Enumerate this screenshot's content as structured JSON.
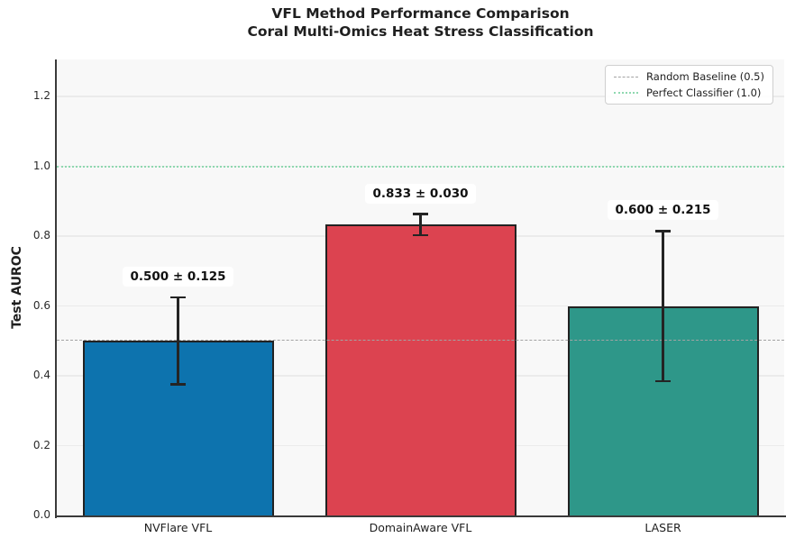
{
  "chart_data": {
    "type": "bar",
    "title_lines": [
      "VFL Method Performance Comparison",
      "Coral Multi-Omics Heat Stress Classification"
    ],
    "ylabel": "Test AUROC",
    "xlabel": "",
    "categories": [
      "NVFlare VFL",
      "DomainAware VFL",
      "LASER"
    ],
    "values": [
      0.5,
      0.833,
      0.6
    ],
    "errors": [
      0.125,
      0.03,
      0.215
    ],
    "value_labels": [
      "0.500 ± 0.125",
      "0.833 ± 0.030",
      "0.600 ± 0.215"
    ],
    "bar_colors": [
      "#0d73ae",
      "#dc4350",
      "#2e9789"
    ],
    "bar_edge_color": "#222222",
    "error_bar_color": "#242424",
    "ylim": [
      0,
      1.306
    ],
    "yticks": [
      0.0,
      0.2,
      0.4,
      0.6,
      0.8,
      1.0,
      1.2
    ],
    "grid": true,
    "plot_background": "#f8f8f8",
    "grid_color": "#ebebeb",
    "legend_position": "upper right",
    "reference_lines": [
      {
        "label": "Random Baseline (0.5)",
        "value": 0.5,
        "style": "dashed",
        "color": "#a3a3a3"
      },
      {
        "label": "Perfect Classifier (1.0)",
        "value": 1.0,
        "style": "dotted",
        "color": "#8fd8b0"
      }
    ]
  }
}
